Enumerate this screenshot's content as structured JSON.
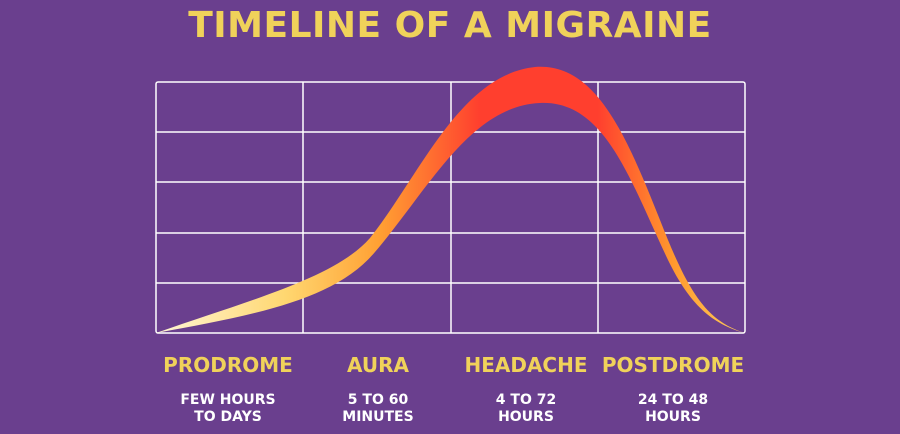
{
  "title": "TIMELINE OF A MIGRAINE",
  "phases": [
    {
      "name": "PRODROME",
      "duration_line1": "FEW HOURS",
      "duration_line2": "TO DAYS"
    },
    {
      "name": "AURA",
      "duration_line1": "5 TO 60",
      "duration_line2": "MINUTES"
    },
    {
      "name": "HEADACHE",
      "duration_line1": "4 TO 72",
      "duration_line2": "HOURS"
    },
    {
      "name": "POSTDROME",
      "duration_line1": "24 TO 48",
      "duration_line2": "HOURS"
    }
  ],
  "colors": {
    "background": "#6a3f8e",
    "title": "#f0d25a",
    "grid": "#ffffff",
    "curve_start": "#fff3c4",
    "curve_mid": "#ff9a2a",
    "curve_peak": "#ff3b2f"
  }
}
